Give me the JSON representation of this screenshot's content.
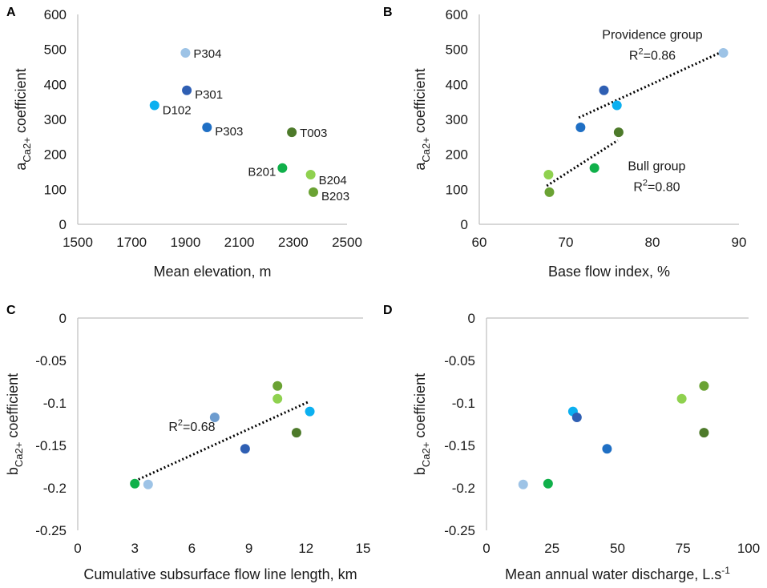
{
  "colors": {
    "P304": "#9dc3e6",
    "P301": "#2f5fb3",
    "D102": "#0cb0f0",
    "P303": "#1f6fc4",
    "T003": "#4d7a2a",
    "B201": "#10b04a",
    "B204": "#8fd14f",
    "B203": "#6aa233",
    "P_light2": "#6d9ccf"
  },
  "chart_data": [
    {
      "panel": "A",
      "type": "scatter",
      "xlabel": "Mean elevation, m",
      "ylabel_main": "a",
      "ylabel_sub": "Ca2+",
      "ylabel_rest": " coefficient",
      "xlim": [
        1500,
        2500
      ],
      "ylim": [
        0,
        600
      ],
      "xticks": [
        1500,
        1700,
        1900,
        2100,
        2300,
        2500
      ],
      "yticks": [
        0,
        100,
        200,
        300,
        400,
        500,
        600
      ],
      "points": [
        {
          "label": "P304",
          "x": 1900,
          "y": 490,
          "color": "P304"
        },
        {
          "label": "P301",
          "x": 1905,
          "y": 383,
          "color": "P301"
        },
        {
          "label": "D102",
          "x": 1785,
          "y": 340,
          "color": "D102"
        },
        {
          "label": "P303",
          "x": 1980,
          "y": 277,
          "color": "P303"
        },
        {
          "label": "T003",
          "x": 2295,
          "y": 263,
          "color": "T003"
        },
        {
          "label": "B201",
          "x": 2260,
          "y": 161,
          "color": "B201"
        },
        {
          "label": "B204",
          "x": 2365,
          "y": 142,
          "color": "B204"
        },
        {
          "label": "B203",
          "x": 2375,
          "y": 92,
          "color": "B203"
        }
      ]
    },
    {
      "panel": "B",
      "type": "scatter",
      "xlabel": "Base flow index, %",
      "ylabel_main": "a",
      "ylabel_sub": "Ca2+",
      "ylabel_rest": " coefficient",
      "xlim": [
        60,
        90
      ],
      "ylim": [
        0,
        600
      ],
      "xticks": [
        60,
        70,
        80,
        90
      ],
      "yticks": [
        0,
        100,
        200,
        300,
        400,
        500,
        600
      ],
      "points": [
        {
          "x": 88.2,
          "y": 490,
          "color": "P304"
        },
        {
          "x": 74.4,
          "y": 383,
          "color": "P301"
        },
        {
          "x": 75.9,
          "y": 340,
          "color": "D102"
        },
        {
          "x": 71.7,
          "y": 277,
          "color": "P303"
        },
        {
          "x": 76.1,
          "y": 263,
          "color": "T003"
        },
        {
          "x": 73.3,
          "y": 161,
          "color": "B201"
        },
        {
          "x": 68.0,
          "y": 142,
          "color": "B204"
        },
        {
          "x": 68.1,
          "y": 92,
          "color": "B203"
        }
      ],
      "trendlines": [
        {
          "x": [
            71.5,
            88.2
          ],
          "y": [
            305,
            495
          ]
        },
        {
          "x": [
            67.8,
            76.0
          ],
          "y": [
            110,
            240
          ]
        }
      ],
      "annotations": [
        {
          "text": "Providence group",
          "r2": "0.86",
          "anchor_x": 80,
          "anchor_y": 530
        },
        {
          "text": "Bull group",
          "r2": "0.80",
          "anchor_x": 80.5,
          "anchor_y": 155
        }
      ]
    },
    {
      "panel": "C",
      "type": "scatter",
      "xlabel": "Cumulative subsurface flow line length, km",
      "ylabel_main": "b",
      "ylabel_sub": "Ca2+",
      "ylabel_rest": " coefficient",
      "xlim": [
        0,
        15
      ],
      "ylim": [
        -0.25,
        0
      ],
      "xticks": [
        0,
        3,
        6,
        9,
        12,
        15
      ],
      "yticks": [
        0,
        -0.05,
        -0.1,
        -0.15,
        -0.2,
        -0.25
      ],
      "ytick_labels": [
        "0",
        "-0.05",
        "-0.1",
        "-0.15",
        "-0.2",
        "-0.25"
      ],
      "points": [
        {
          "x": 3.0,
          "y": -0.195,
          "color": "B201"
        },
        {
          "x": 3.7,
          "y": -0.196,
          "color": "P304"
        },
        {
          "x": 7.2,
          "y": -0.117,
          "color": "P_light2"
        },
        {
          "x": 8.8,
          "y": -0.154,
          "color": "P301"
        },
        {
          "x": 10.5,
          "y": -0.08,
          "color": "B203"
        },
        {
          "x": 10.5,
          "y": -0.095,
          "color": "B204"
        },
        {
          "x": 11.5,
          "y": -0.135,
          "color": "T003"
        },
        {
          "x": 12.2,
          "y": -0.11,
          "color": "D102"
        }
      ],
      "trendlines": [
        {
          "x": [
            3.0,
            12.2
          ],
          "y": [
            -0.192,
            -0.098
          ]
        }
      ],
      "annotations": [
        {
          "text": "",
          "r2": "0.68",
          "anchor_x": 6.0,
          "anchor_y": -0.133
        }
      ]
    },
    {
      "panel": "D",
      "type": "scatter",
      "xlabel_main": "Mean annual water discharge, L.s",
      "xlabel_sup": "-1",
      "ylabel_main": "b",
      "ylabel_sub": "Ca2+",
      "ylabel_rest": " coefficient",
      "xlim": [
        0,
        100
      ],
      "ylim": [
        -0.25,
        0
      ],
      "xticks": [
        0,
        25,
        50,
        75,
        100
      ],
      "yticks": [
        0,
        -0.05,
        -0.1,
        -0.15,
        -0.2,
        -0.25
      ],
      "ytick_labels": [
        "0",
        "-0.05",
        "-0.1",
        "-0.15",
        "-0.2",
        "-0.25"
      ],
      "points": [
        {
          "x": 14,
          "y": -0.196,
          "color": "P304"
        },
        {
          "x": 23.5,
          "y": -0.195,
          "color": "B201"
        },
        {
          "x": 33,
          "y": -0.11,
          "color": "D102"
        },
        {
          "x": 34.5,
          "y": -0.117,
          "color": "P301"
        },
        {
          "x": 46,
          "y": -0.154,
          "color": "P303"
        },
        {
          "x": 74.5,
          "y": -0.095,
          "color": "B204"
        },
        {
          "x": 83,
          "y": -0.08,
          "color": "B203"
        },
        {
          "x": 83,
          "y": -0.135,
          "color": "T003"
        }
      ]
    }
  ]
}
